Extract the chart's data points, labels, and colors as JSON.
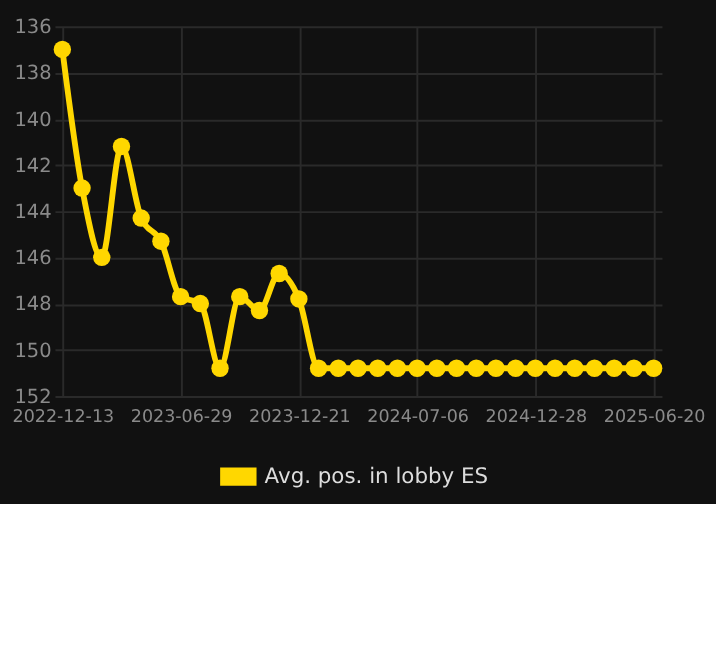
{
  "chart_data": {
    "type": "line",
    "categories": [
      "2022-12-13",
      null,
      null,
      null,
      null,
      null,
      "2023-06-29",
      null,
      null,
      null,
      null,
      null,
      "2023-12-21",
      null,
      null,
      null,
      null,
      null,
      "2024-07-06",
      null,
      null,
      null,
      null,
      null,
      "2024-12-28",
      null,
      null,
      null,
      null,
      null,
      "2025-06-20"
    ],
    "series": [
      {
        "name": "Avg. pos. in lobby ES",
        "color": "#ffd700",
        "values": [
          137.0,
          143.0,
          146.0,
          141.2,
          144.3,
          145.3,
          147.7,
          148.0,
          150.8,
          147.7,
          148.3,
          146.7,
          147.8,
          150.8,
          150.8,
          150.8,
          150.8,
          150.8,
          150.8,
          150.8,
          150.8,
          150.8,
          150.8,
          150.8,
          150.8,
          150.8,
          150.8,
          150.8,
          150.8,
          150.8,
          150.8
        ]
      }
    ],
    "ylim": [
      152,
      136
    ],
    "yticks": [
      136,
      138,
      140,
      142,
      144,
      146,
      148,
      150,
      152
    ],
    "grid": true,
    "legend": "bottom",
    "marker": "circle",
    "line_style": "solid"
  }
}
